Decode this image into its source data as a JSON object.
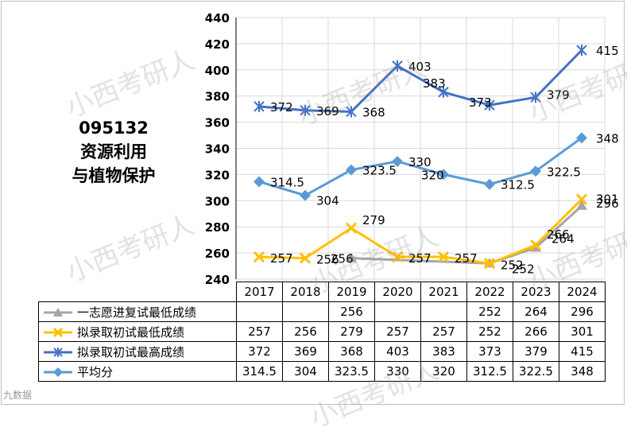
{
  "subject": {
    "code": "095132",
    "name_line1": "资源利用",
    "name_line2": "与植物保护"
  },
  "watermark": {
    "text": "小西考研人",
    "bottom_text": "九数据"
  },
  "chart_data": {
    "type": "line",
    "categories": [
      "2017",
      "2018",
      "2019",
      "2020",
      "2021",
      "2022",
      "2023",
      "2024"
    ],
    "ylim": [
      240,
      440
    ],
    "yticks": [
      240,
      260,
      280,
      300,
      320,
      340,
      360,
      380,
      400,
      420,
      440
    ],
    "grid": true,
    "legend_placement": "table-left",
    "series": [
      {
        "name": "一志愿进复试最低成绩",
        "marker": "triangle",
        "color": "#a5a5a5",
        "values": [
          null,
          null,
          256,
          null,
          null,
          252,
          264,
          296
        ],
        "display": [
          "",
          "",
          "256",
          "",
          "",
          "252",
          "264",
          "296"
        ]
      },
      {
        "name": "拟录取初试最低成绩",
        "marker": "x",
        "color": "#ffc000",
        "values": [
          257,
          256,
          279,
          257,
          257,
          252,
          266,
          301
        ],
        "display": [
          "257",
          "256",
          "279",
          "257",
          "257",
          "252",
          "266",
          "301"
        ]
      },
      {
        "name": "拟录取初试最高成绩",
        "marker": "star",
        "color": "#4472c4",
        "values": [
          372,
          369,
          368,
          403,
          383,
          373,
          379,
          415
        ],
        "display": [
          "372",
          "369",
          "368",
          "403",
          "383",
          "373",
          "379",
          "415"
        ]
      },
      {
        "name": "平均分",
        "marker": "diamond",
        "color": "#5b9bd5",
        "values": [
          314.5,
          304,
          323.5,
          330,
          320,
          312.5,
          322.5,
          348
        ],
        "display": [
          "314.5",
          "304",
          "323.5",
          "330",
          "320",
          "312.5",
          "322.5",
          "348"
        ]
      }
    ]
  }
}
